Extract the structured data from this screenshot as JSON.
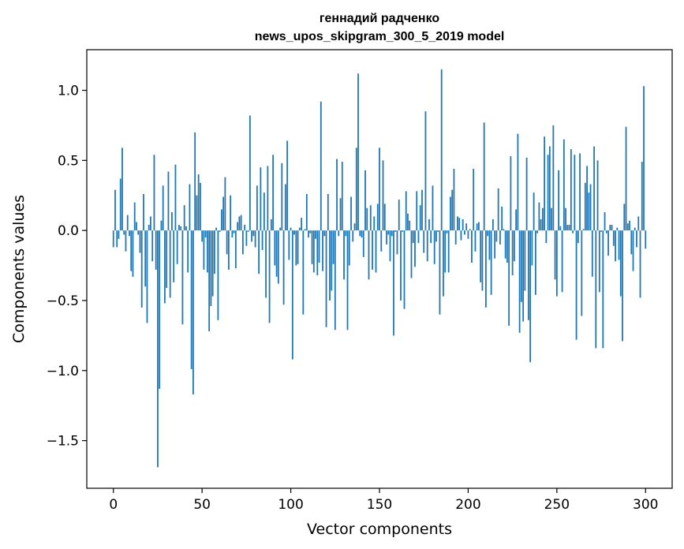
{
  "chart_data": {
    "type": "bar",
    "title": [
      "геннадий радченко",
      "news_upos_skipgram_300_5_2019 model"
    ],
    "xlabel": "Vector components",
    "ylabel": "Components values",
    "xlim": [
      -15,
      315
    ],
    "ylim": [
      -1.84,
      1.29
    ],
    "xticks": [
      0,
      50,
      100,
      150,
      200,
      250,
      300
    ],
    "xtick_labels": [
      "0",
      "50",
      "100",
      "150",
      "200",
      "250",
      "300"
    ],
    "yticks": [
      1.0,
      0.5,
      0.0,
      -0.5,
      -1.0,
      -1.5
    ],
    "ytick_labels": [
      "1.0",
      "0.5",
      "0.0",
      "−0.5",
      "−1.0",
      "−1.5"
    ],
    "grid": false,
    "bar_color": "#1f77b4",
    "x": "0..299",
    "values": [
      -0.12,
      0.29,
      -0.12,
      -0.06,
      0.37,
      0.59,
      -0.03,
      -0.15,
      0.11,
      -0.04,
      -0.29,
      -0.33,
      0.2,
      0.06,
      -0.03,
      -0.16,
      -0.55,
      0.26,
      -0.4,
      -0.66,
      0.04,
      0.1,
      -0.22,
      0.54,
      -0.28,
      -1.69,
      -1.13,
      0.07,
      0.32,
      -0.52,
      -0.41,
      0.42,
      -0.48,
      0.13,
      -0.37,
      0.47,
      -0.24,
      0.04,
      0.03,
      -0.67,
      0.18,
      0.03,
      -0.3,
      0.33,
      -0.99,
      -1.17,
      0.7,
      0.25,
      0.4,
      0.34,
      -0.08,
      -0.28,
      -0.05,
      -0.3,
      -0.72,
      -0.54,
      -0.47,
      -0.31,
      0.02,
      -0.64,
      -0.01,
      0.15,
      0.24,
      0.38,
      -0.17,
      -0.28,
      0.25,
      -0.05,
      -0.02,
      -0.27,
      0.06,
      0.1,
      0.11,
      -0.17,
      0.04,
      -0.11,
      -0.01,
      0.82,
      -0.08,
      -0.04,
      -0.12,
      0.32,
      -0.31,
      0.45,
      -0.14,
      0.27,
      -0.48,
      0.46,
      -0.66,
      0.08,
      0.54,
      -0.25,
      -0.33,
      -0.38,
      0.02,
      0.48,
      -0.53,
      0.33,
      0.64,
      -0.21,
      0.02,
      -0.92,
      -0.03,
      -0.25,
      -0.24,
      0.02,
      0.09,
      -0.6,
      0.01,
      0.26,
      -0.05,
      -0.02,
      -0.24,
      -0.3,
      -0.06,
      -0.32,
      -0.23,
      0.92,
      -0.29,
      -0.04,
      -0.69,
      0.26,
      -0.5,
      -0.43,
      -0.24,
      -0.71,
      0.51,
      -0.04,
      0.23,
      0.49,
      -0.35,
      -0.04,
      -0.71,
      -0.25,
      0.24,
      -0.08,
      0.05,
      0.59,
      1.12,
      -0.04,
      -0.05,
      -0.19,
      0.43,
      0.16,
      -0.35,
      0.18,
      -0.28,
      0.1,
      -0.3,
      0.19,
      0.59,
      -0.15,
      0.5,
      0.19,
      -0.1,
      -0.03,
      -0.22,
      -0.04,
      -0.75,
      -0.01,
      -0.17,
      0.22,
      -0.5,
      -0.01,
      -0.56,
      0.28,
      0.12,
      0.07,
      -0.34,
      -0.09,
      -0.26,
      0.28,
      -0.09,
      0.18,
      0.29,
      -0.16,
      0.85,
      -0.22,
      0.08,
      -0.09,
      0.32,
      -0.24,
      -0.08,
      -0.01,
      -0.6,
      1.15,
      -0.47,
      -0.3,
      -0.02,
      -0.3,
      0.24,
      0.29,
      0.44,
      -0.1,
      0.1,
      0.09,
      -0.07,
      0.08,
      -0.03,
      0.05,
      -0.06,
      0.01,
      -0.23,
      0.44,
      -0.15,
      0.05,
      0.06,
      -0.37,
      -0.43,
      0.77,
      -0.55,
      -0.04,
      -0.21,
      -0.46,
      0.08,
      -0.2,
      -0.08,
      0.3,
      -0.1,
      0.17,
      0.01,
      -0.2,
      -0.23,
      -0.68,
      0.53,
      -0.32,
      -0.22,
      0.15,
      0.69,
      -0.73,
      -0.51,
      -0.65,
      -0.43,
      0.52,
      -0.64,
      -0.94,
      -0.25,
      0.27,
      -0.46,
      -0.02,
      0.2,
      0.08,
      0.16,
      0.67,
      -0.09,
      0.54,
      0.6,
      0.16,
      0.75,
      -0.35,
      -0.47,
      0.43,
      0.03,
      -0.44,
      0.65,
      0.16,
      0.04,
      0.04,
      0.58,
      -0.02,
      0.54,
      -0.78,
      -0.09,
      0.55,
      -0.61,
      0.01,
      0.34,
      0.46,
      0.27,
      0.33,
      -0.33,
      0.6,
      -0.84,
      0.5,
      -0.44,
      -0.01,
      -0.84,
      0.13,
      -0.02,
      -0.18,
      0.04,
      0.04,
      -0.11,
      -0.22,
      0.02,
      -0.21,
      -0.47,
      -0.79,
      0.19,
      0.74,
      0.05,
      0.07,
      -0.17,
      -0.29,
      0.02,
      -0.12,
      0.1,
      -0.48,
      0.49,
      1.03,
      -0.13
    ]
  }
}
